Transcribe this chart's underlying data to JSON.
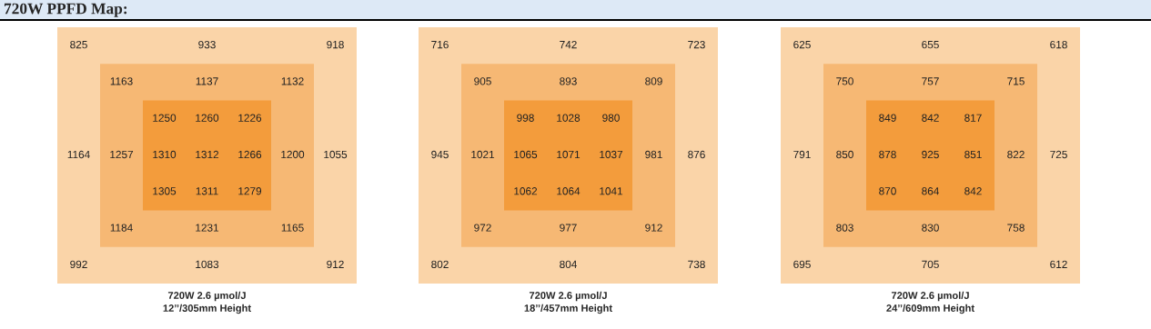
{
  "chart_data": [
    {
      "type": "other",
      "title": "720W PPFD Map:",
      "values": [
        825,
        933,
        918,
        1163,
        1137,
        1132,
        1250,
        1260,
        1226,
        1164,
        1257,
        1310,
        1312,
        1266,
        1200,
        1055,
        1305,
        1311,
        1279,
        1184,
        1231,
        1165,
        992,
        1083,
        912
      ],
      "value_labels": [
        "825",
        "933",
        "918",
        "1163",
        "1137",
        "1132",
        "1250",
        "1260",
        "1226",
        "1164",
        "1257",
        "1310",
        "1312",
        "1266",
        "1200",
        "1055",
        "1305",
        "1311",
        "1279",
        "1184",
        "1231",
        "1165",
        "992",
        "1083",
        "912"
      ],
      "annotations": [
        "720W 2.6 µmol/J",
        "12’’/305mm Height"
      ]
    },
    {
      "type": "other",
      "data_labels": true,
      "values": [
        716,
        742,
        723,
        905,
        893,
        809,
        998,
        1028,
        980,
        945,
        1021,
        1065,
        1071,
        1037,
        981,
        876,
        1062,
        1064,
        1041,
        972,
        977,
        912,
        802,
        804,
        738
      ],
      "annotations": [
        "720W 2.6 µmol/J",
        "18’’/457mm Height"
      ]
    },
    {
      "type": "other",
      "data_labels": true,
      "values": [
        625,
        655,
        618,
        750,
        757,
        715,
        849,
        842,
        817,
        791,
        850,
        878,
        925,
        851,
        822,
        725,
        870,
        864,
        842,
        803,
        830,
        758,
        695,
        705,
        612
      ],
      "annotations": [
        "720W 2.6 µmol/J",
        "24’’/609mm Height"
      ]
    }
  ]
}
